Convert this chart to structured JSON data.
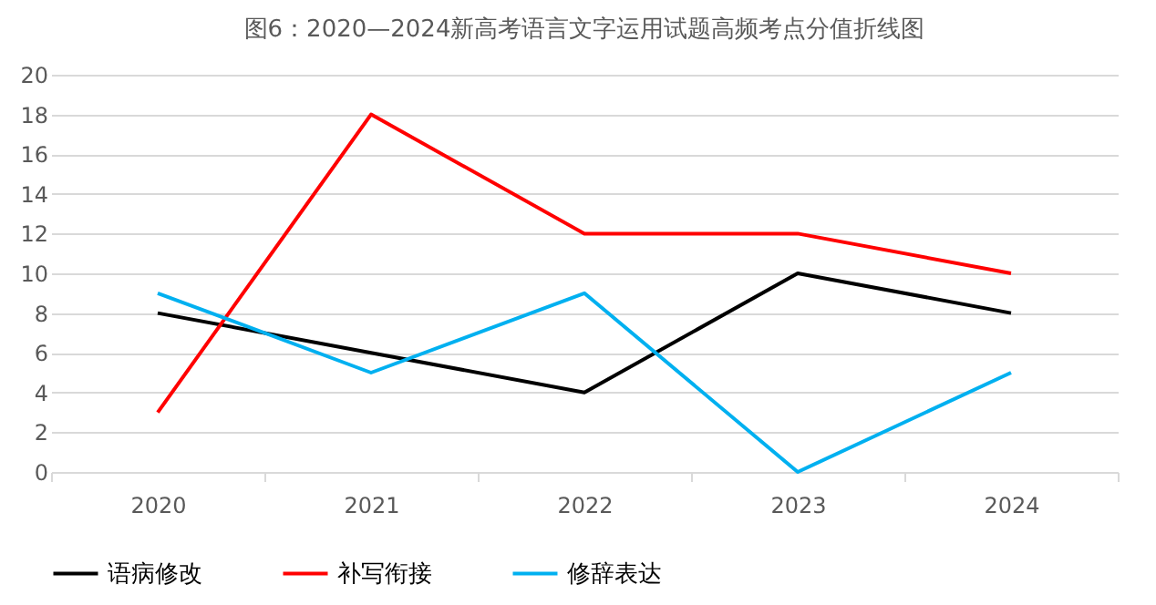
{
  "chart_data": {
    "type": "line",
    "title": "图6：2020—2024新高考语言文字运用试题高频考点分值折线图",
    "categories": [
      "2020",
      "2021",
      "2022",
      "2023",
      "2024"
    ],
    "series": [
      {
        "name": "语病修改",
        "color": "#000000",
        "values": [
          8,
          6,
          4,
          10,
          8
        ]
      },
      {
        "name": "补写衔接",
        "color": "#ff0000",
        "values": [
          3,
          18,
          12,
          12,
          10
        ]
      },
      {
        "name": "修辞表达",
        "color": "#00b0f0",
        "values": [
          9,
          5,
          9,
          0,
          5
        ]
      }
    ],
    "ylim": [
      0,
      20
    ],
    "yticks": [
      0,
      2,
      4,
      6,
      8,
      10,
      12,
      14,
      16,
      18,
      20
    ],
    "grid": "y",
    "legend": "bottom",
    "line_style": "solid"
  }
}
